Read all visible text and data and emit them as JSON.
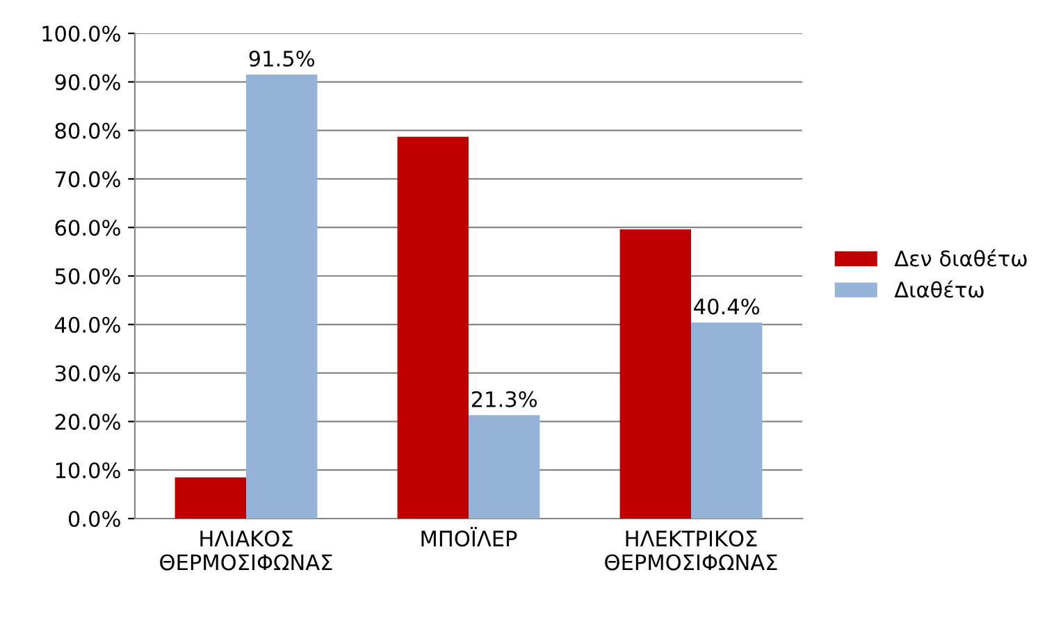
{
  "chart_data": {
    "type": "bar",
    "categories": [
      "ΗΛΙΑΚΟΣ\nΘΕΡΜΟΣΙΦΩΝΑΣ",
      "ΜΠΟΪΛΕΡ",
      "ΗΛΕΚΤΡΙΚΟΣ\nΘΕΡΜΟΣΙΦΩΝΑΣ"
    ],
    "series": [
      {
        "name": "Δεν διαθέτω",
        "color": "#c00000",
        "values": [
          8.5,
          78.7,
          59.6
        ]
      },
      {
        "name": "Διαθέτω",
        "color": "#95b3d7",
        "values": [
          91.5,
          21.3,
          40.4
        ],
        "value_labels": [
          "91.5%",
          "21.3%",
          "40.4%"
        ]
      }
    ],
    "ylim": [
      0,
      100
    ],
    "yticks": [
      {
        "value": 0,
        "label": "0.0%"
      },
      {
        "value": 10,
        "label": "10.0%"
      },
      {
        "value": 20,
        "label": "20.0%"
      },
      {
        "value": 30,
        "label": "30.0%"
      },
      {
        "value": 40,
        "label": "40.0%"
      },
      {
        "value": 50,
        "label": "50.0%"
      },
      {
        "value": 60,
        "label": "60.0%"
      },
      {
        "value": 70,
        "label": "70.0%"
      },
      {
        "value": 80,
        "label": "80.0%"
      },
      {
        "value": 90,
        "label": "90.0%"
      },
      {
        "value": 100,
        "label": "100.0%"
      }
    ],
    "grid": "y",
    "legend": "right"
  }
}
